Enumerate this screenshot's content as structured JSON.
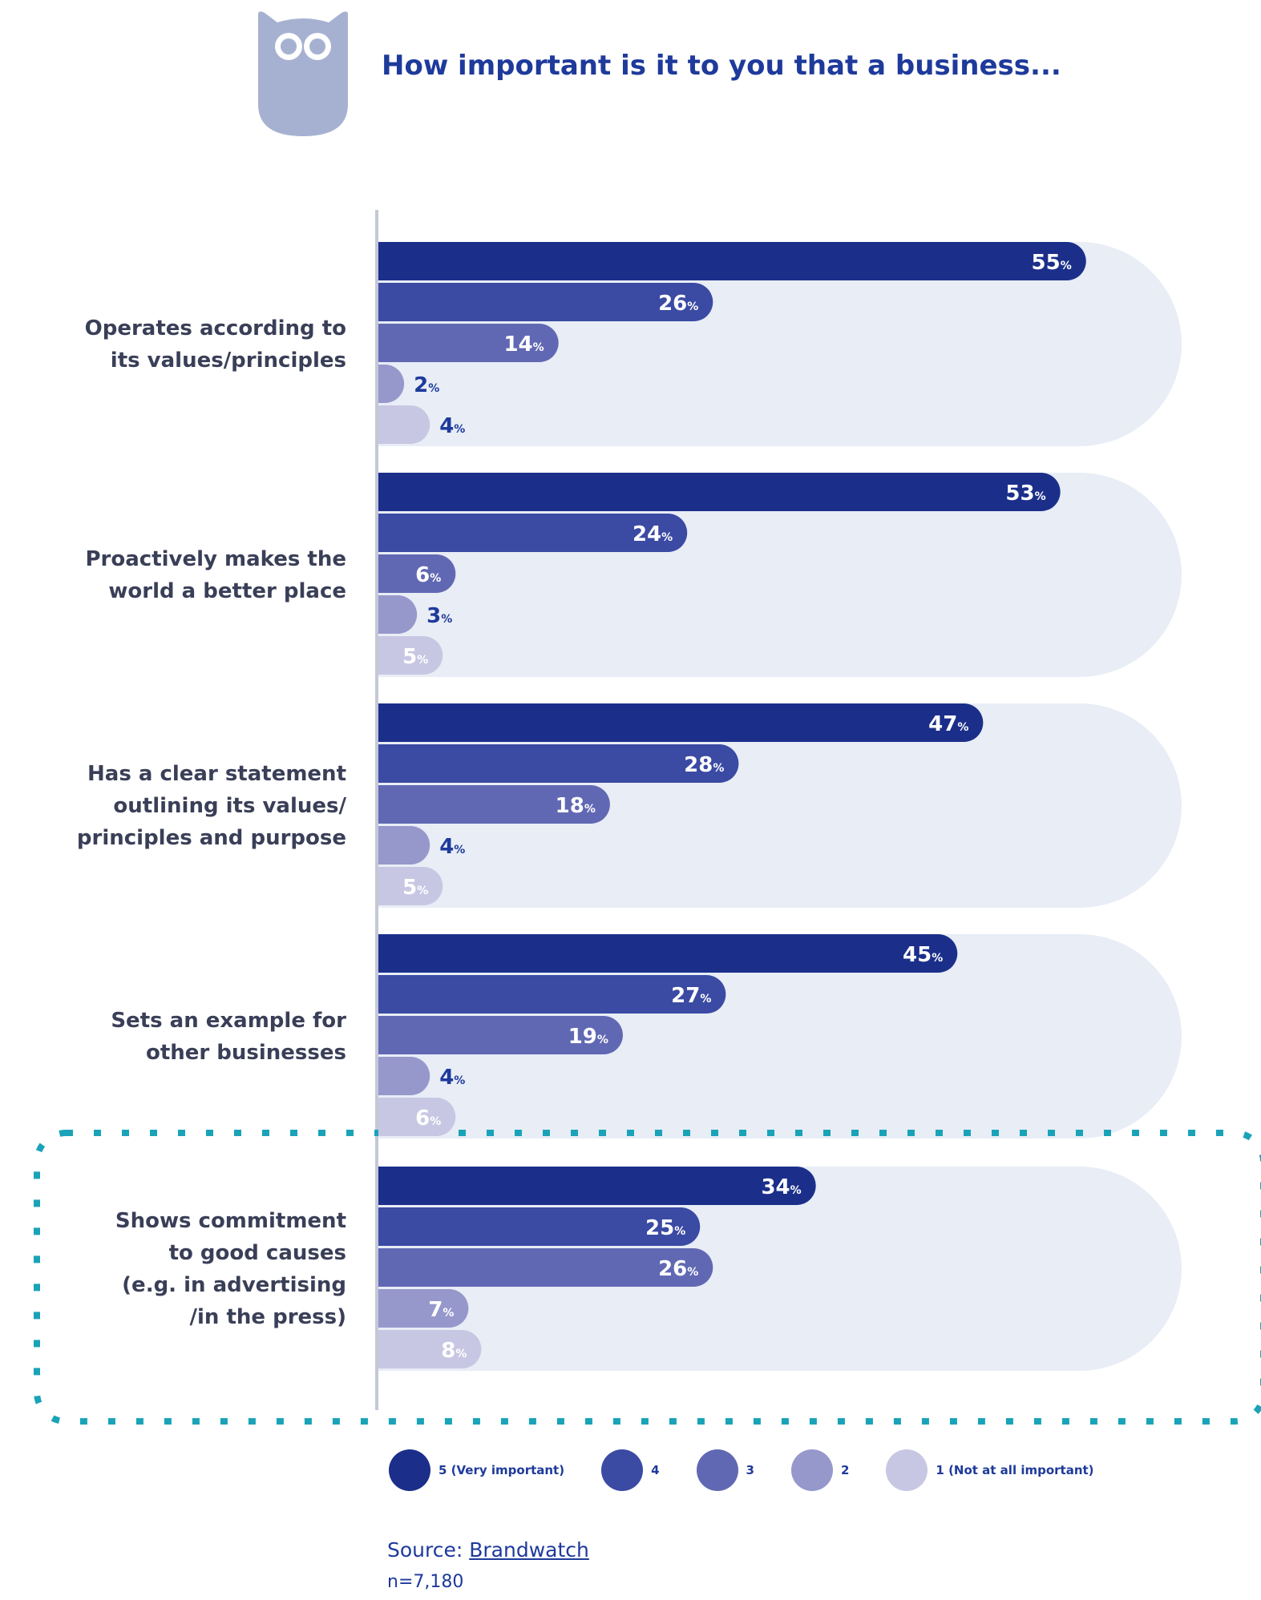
{
  "title": "How important is it to you that a business...",
  "colors": {
    "series": [
      "#1b2f8a",
      "#3b4aa3",
      "#6168b3",
      "#9698cc",
      "#c8c7e3"
    ],
    "backdrop": "#e8edf6",
    "axis": "#c3c8d6",
    "highlight": "#1aa3b8",
    "logo": "#a6b1d2"
  },
  "chart_data": {
    "type": "bar",
    "orientation": "horizontal",
    "title": "How important is it to you that a business...",
    "unit": "%",
    "categories": [
      "Operates according to\nits values/principles",
      "Proactively makes the\nworld a better place",
      "Has a clear statement\noutlining its values/\nprinciples and purpose",
      "Sets an example for\nother businesses",
      "Shows commitment\nto good causes\n(e.g. in advertising\n/in the press)"
    ],
    "series": [
      {
        "name": "5 (Very important)",
        "values": [
          55,
          53,
          47,
          45,
          34
        ]
      },
      {
        "name": "4",
        "values": [
          26,
          24,
          28,
          27,
          25
        ]
      },
      {
        "name": "3",
        "values": [
          14,
          6,
          18,
          19,
          26
        ]
      },
      {
        "name": "2",
        "values": [
          2,
          3,
          4,
          4,
          7
        ]
      },
      {
        "name": "1 (Not at all important)",
        "values": [
          4,
          5,
          5,
          6,
          8
        ]
      }
    ],
    "xlim": [
      0,
      60
    ],
    "grid": false,
    "legend": "bottom",
    "highlighted_category": "Shows commitment\nto good causes\n(e.g. in advertising\n/in the press)"
  },
  "source": {
    "label": "Source: ",
    "link": "Brandwatch"
  },
  "sample": "n=7,180"
}
